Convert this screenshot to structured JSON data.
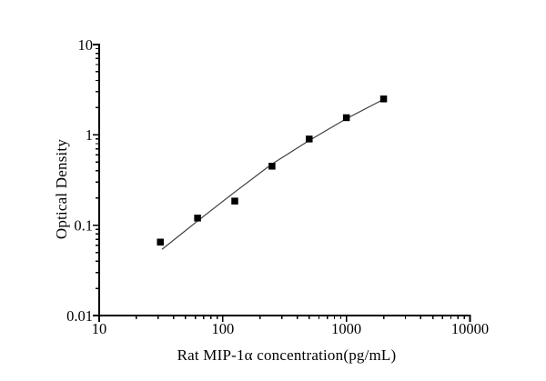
{
  "page": {
    "background": "#ffffff",
    "text_color": "#000000"
  },
  "chart_data": {
    "type": "scatter",
    "title": "",
    "xlabel": "Rat MIP-1α concentration(pg/mL)",
    "ylabel": "Optical Density",
    "x_scale": "log",
    "y_scale": "log",
    "xlim": [
      10,
      10000
    ],
    "ylim": [
      0.01,
      10
    ],
    "x_tick_labels": [
      "10",
      "100",
      "1000",
      "10000"
    ],
    "y_tick_labels": [
      "0.01",
      "0.1",
      "1",
      "10"
    ],
    "grid": false,
    "legend": "none",
    "axis_color": "#000000",
    "series": [
      {
        "name": "standard-points",
        "type": "scatter",
        "marker": "filled-square",
        "color": "#000000",
        "x": [
          31.25,
          62.5,
          125,
          250,
          500,
          1000,
          2000
        ],
        "y": [
          0.065,
          0.12,
          0.185,
          0.45,
          0.9,
          1.55,
          2.5
        ]
      },
      {
        "name": "fit-line",
        "type": "line",
        "color": "#3f3f3f",
        "x": [
          32.2,
          61.3,
          123,
          246,
          493,
          989,
          2015
        ],
        "y": [
          0.054,
          0.109,
          0.229,
          0.469,
          0.857,
          1.5,
          2.49
        ]
      }
    ]
  }
}
